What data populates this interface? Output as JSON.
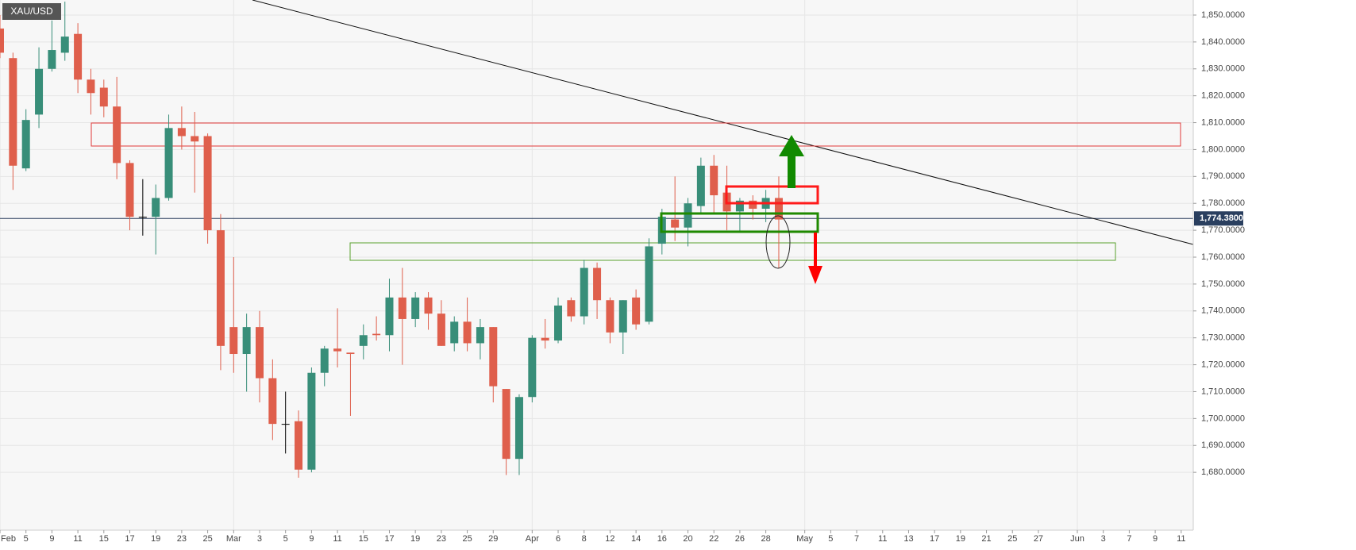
{
  "chart_data": {
    "type": "candlestick",
    "symbol": "XAU/USD",
    "last_price": {
      "value": 1774.38,
      "label": "1,774.3800"
    },
    "up_color": "#388e79",
    "down_color": "#df5f4c",
    "doji_color": "#000000",
    "xlim": [
      0,
      91.93
    ],
    "ylim": [
      1658.5,
      1855.6
    ],
    "yticks": [
      {
        "value": 1680,
        "label": "1,680.0000"
      },
      {
        "value": 1690,
        "label": "1,690.0000"
      },
      {
        "value": 1700,
        "label": "1,700.0000"
      },
      {
        "value": 1710,
        "label": "1,710.0000"
      },
      {
        "value": 1720,
        "label": "1,720.0000"
      },
      {
        "value": 1730,
        "label": "1,730.0000"
      },
      {
        "value": 1740,
        "label": "1,740.0000"
      },
      {
        "value": 1750,
        "label": "1,750.0000"
      },
      {
        "value": 1760,
        "label": "1,760.0000"
      },
      {
        "value": 1770,
        "label": "1,770.0000"
      },
      {
        "value": 1780,
        "label": "1,780.0000"
      },
      {
        "value": 1790,
        "label": "1,790.0000"
      },
      {
        "value": 1800,
        "label": "1,800.0000"
      },
      {
        "value": 1810,
        "label": "1,810.0000"
      },
      {
        "value": 1820,
        "label": "1,820.0000"
      },
      {
        "value": 1830,
        "label": "1,830.0000"
      },
      {
        "value": 1840,
        "label": "1,840.0000"
      },
      {
        "value": 1850,
        "label": "1,850.0000"
      }
    ],
    "month_ticks": [
      {
        "value": 0,
        "label": "Feb"
      },
      {
        "value": 18,
        "label": "Mar"
      },
      {
        "value": 41,
        "label": "Apr"
      },
      {
        "value": 62,
        "label": "May"
      },
      {
        "value": 83,
        "label": "Jun"
      }
    ],
    "xticks": [
      {
        "value": 2,
        "label": "5"
      },
      {
        "value": 4,
        "label": "9"
      },
      {
        "value": 6,
        "label": "11"
      },
      {
        "value": 8,
        "label": "15"
      },
      {
        "value": 10,
        "label": "17"
      },
      {
        "value": 12,
        "label": "19"
      },
      {
        "value": 14,
        "label": "23"
      },
      {
        "value": 16,
        "label": "25"
      },
      {
        "value": 20,
        "label": "3"
      },
      {
        "value": 22,
        "label": "5"
      },
      {
        "value": 24,
        "label": "9"
      },
      {
        "value": 26,
        "label": "11"
      },
      {
        "value": 28,
        "label": "15"
      },
      {
        "value": 30,
        "label": "17"
      },
      {
        "value": 32,
        "label": "19"
      },
      {
        "value": 34,
        "label": "23"
      },
      {
        "value": 36,
        "label": "25"
      },
      {
        "value": 38,
        "label": "29"
      },
      {
        "value": 43,
        "label": "6"
      },
      {
        "value": 45,
        "label": "8"
      },
      {
        "value": 47,
        "label": "12"
      },
      {
        "value": 49,
        "label": "14"
      },
      {
        "value": 51,
        "label": "16"
      },
      {
        "value": 53,
        "label": "20"
      },
      {
        "value": 55,
        "label": "22"
      },
      {
        "value": 57,
        "label": "26"
      },
      {
        "value": 59,
        "label": "28"
      },
      {
        "value": 64,
        "label": "5"
      },
      {
        "value": 66,
        "label": "7"
      },
      {
        "value": 68,
        "label": "11"
      },
      {
        "value": 70,
        "label": "13"
      },
      {
        "value": 72,
        "label": "17"
      },
      {
        "value": 74,
        "label": "19"
      },
      {
        "value": 76,
        "label": "21"
      },
      {
        "value": 78,
        "label": "25"
      },
      {
        "value": 80,
        "label": "27"
      },
      {
        "value": 85,
        "label": "3"
      },
      {
        "value": 87,
        "label": "7"
      },
      {
        "value": 89,
        "label": "9"
      },
      {
        "value": 91,
        "label": "11"
      }
    ],
    "x": [
      0,
      1,
      2,
      3,
      4,
      5,
      6,
      7,
      8,
      9,
      10,
      11,
      12,
      13,
      14,
      15,
      16,
      17,
      18,
      19,
      20,
      21,
      22,
      23,
      24,
      25,
      26,
      27,
      28,
      29,
      30,
      31,
      32,
      33,
      34,
      35,
      36,
      37,
      38,
      39,
      40,
      41,
      42,
      43,
      44,
      45,
      46,
      47,
      48,
      49,
      50,
      51,
      52,
      53,
      54,
      55,
      56,
      57,
      58,
      59,
      60
    ],
    "open": [
      1845,
      1834,
      1793,
      1813,
      1830,
      1836,
      1843,
      1826,
      1823,
      1816,
      1795,
      1775,
      1775,
      1782,
      1808,
      1805,
      1805,
      1770,
      1734,
      1724,
      1734,
      1715,
      1698,
      1699,
      1681,
      1717,
      1726,
      1724.5,
      1727,
      1731.5,
      1731,
      1745,
      1737,
      1745,
      1739,
      1728,
      1736,
      1728,
      1734,
      1711,
      1685,
      1708,
      1730,
      1729,
      1744,
      1738,
      1756,
      1744,
      1732,
      1745,
      1736,
      1765,
      1774,
      1771,
      1779,
      1794,
      1784,
      1777,
      1781,
      1778,
      1782
    ],
    "high": [
      1850,
      1836,
      1815,
      1838,
      1848,
      1855,
      1847,
      1830,
      1826,
      1827,
      1796,
      1789,
      1787,
      1813,
      1816,
      1814,
      1806,
      1776,
      1760,
      1739,
      1740,
      1722,
      1710,
      1703,
      1719,
      1727,
      1741,
      1724.5,
      1735,
      1738,
      1752,
      1756,
      1747,
      1747,
      1744,
      1738,
      1745,
      1737,
      1734,
      1711,
      1709,
      1731,
      1737,
      1745,
      1745,
      1759,
      1758,
      1745,
      1744,
      1748,
      1767,
      1778,
      1790,
      1782,
      1797,
      1798,
      1794,
      1782,
      1783,
      1785,
      1790
    ],
    "low": [
      1834,
      1785,
      1792,
      1808,
      1829,
      1833,
      1821,
      1813,
      1812,
      1789,
      1770,
      1768,
      1761,
      1781,
      1800,
      1784,
      1765,
      1718,
      1717,
      1710,
      1706,
      1692,
      1687,
      1678,
      1680,
      1712,
      1719,
      1701,
      1722,
      1729,
      1725,
      1720,
      1734,
      1733,
      1727,
      1725,
      1725,
      1722,
      1706,
      1679,
      1679,
      1706,
      1726,
      1728,
      1736,
      1735,
      1737,
      1728,
      1724,
      1733,
      1735,
      1761,
      1766,
      1764,
      1776,
      1776,
      1770,
      1769,
      1774,
      1773,
      1756
    ],
    "close": [
      1836,
      1794,
      1811,
      1830,
      1837,
      1842,
      1826,
      1821,
      1816,
      1795,
      1775,
      1775,
      1782,
      1808,
      1805,
      1803,
      1770,
      1727,
      1724,
      1734,
      1715,
      1698,
      1698,
      1681,
      1717,
      1726,
      1725,
      1724,
      1731,
      1731,
      1745,
      1737,
      1745,
      1739,
      1727,
      1736,
      1728,
      1734,
      1712,
      1685,
      1708,
      1730,
      1729,
      1742,
      1738,
      1756,
      1744,
      1732,
      1744,
      1735,
      1764,
      1775,
      1771,
      1780,
      1794,
      1783,
      1777,
      1781,
      1778,
      1782,
      1774
    ]
  }
}
